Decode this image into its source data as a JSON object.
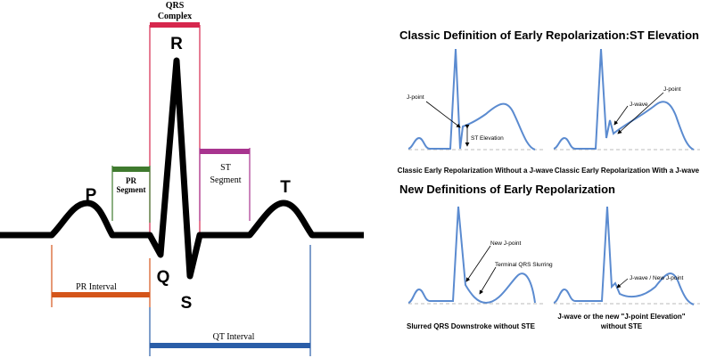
{
  "left": {
    "qrs_complex": [
      "QRS",
      "Complex"
    ],
    "r": "R",
    "pr_segment": [
      "PR",
      "Segment"
    ],
    "st_segment": [
      "ST",
      "Segment"
    ],
    "p": "P",
    "t": "T",
    "q": "Q",
    "s": "S",
    "pr_interval": "PR Interval",
    "qt_interval": "QT Interval"
  },
  "right": {
    "classic": {
      "title": "Classic Definition of Early Repolarization:ST Elevation",
      "panels": [
        {
          "labels": [
            "J-point",
            "ST Elevation"
          ],
          "caption": [
            "Classic Early Repolarization Without a J-wave"
          ]
        },
        {
          "labels": [
            "J-wave",
            "J-point"
          ],
          "caption": [
            "Classic Early Repolarization With a J-wave"
          ]
        }
      ]
    },
    "new": {
      "title": "New Definitions of Early Repolarization",
      "panels": [
        {
          "labels": [
            "New J-point",
            "Terminal QRS Slurring"
          ],
          "caption": [
            "Slurred QRS Downstroke without STE"
          ]
        },
        {
          "labels": [
            "J-wave / New J-point"
          ],
          "caption": [
            "J-wave or the new \"J-point Elevation\"",
            "without STE"
          ]
        }
      ]
    }
  }
}
